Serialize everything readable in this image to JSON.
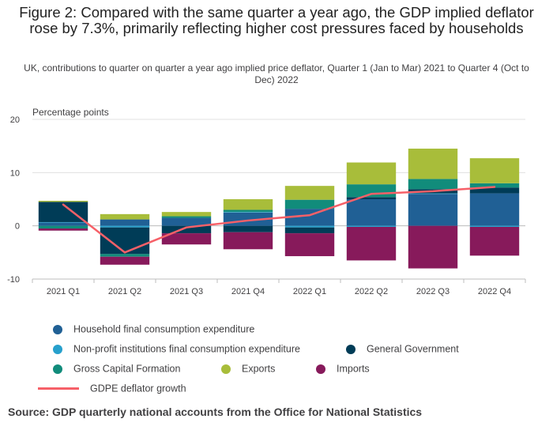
{
  "chart_data": {
    "type": "bar",
    "title": "Figure 2: Compared with the same quarter a year ago, the GDP implied deflator rose by 7.3%, primarily reflecting higher cost pressures faced by households",
    "subtitle": "UK, contributions to quarter on quarter a year ago implied price deflator, Quarter 1 (Jan to Mar) 2021 to Quarter 4 (Oct to Dec) 2022",
    "ylabel": "Percentage points",
    "xlabel": "",
    "ylim": [
      -10,
      20
    ],
    "yticks": [
      "20",
      "10",
      "0",
      "-10"
    ],
    "categories": [
      "2021 Q1",
      "2021 Q2",
      "2021 Q3",
      "2021 Q4",
      "2022 Q1",
      "2022 Q2",
      "2022 Q3",
      "2022 Q4"
    ],
    "stacked": true,
    "grid": true,
    "legend_position": "bottom",
    "series": [
      {
        "name": "Household final consumption expenditure",
        "color": "#206095",
        "values": [
          0.6,
          1.2,
          1.5,
          2.5,
          3.2,
          5.0,
          6.0,
          6.1
        ]
      },
      {
        "name": "Non-profit institutions final consumption expenditure",
        "color": "#27a0cc",
        "values": [
          0.1,
          -0.3,
          0.0,
          0.1,
          -0.3,
          -0.2,
          0.1,
          -0.2
        ]
      },
      {
        "name": "General Government",
        "color": "#003c57",
        "values": [
          3.8,
          -5.0,
          -1.4,
          -1.2,
          -1.1,
          0.4,
          0.8,
          1.1
        ]
      },
      {
        "name": "Gross Capital Formation",
        "color": "#118c7b",
        "values": [
          -0.5,
          -0.5,
          0.3,
          0.4,
          1.7,
          2.4,
          1.9,
          0.8
        ]
      },
      {
        "name": "Exports",
        "color": "#a8bd3a",
        "values": [
          0.2,
          1.0,
          0.8,
          2.0,
          2.6,
          4.1,
          5.7,
          4.7
        ]
      },
      {
        "name": "Imports",
        "color": "#871a5b",
        "values": [
          -0.4,
          -1.5,
          -2.1,
          -3.2,
          -4.3,
          -6.3,
          -8.0,
          -5.4
        ]
      }
    ],
    "line_series": {
      "name": "GDPE deflator growth",
      "color": "#f66068",
      "values": [
        4.0,
        -5.0,
        -0.3,
        1.0,
        2.0,
        6.0,
        6.5,
        7.3
      ]
    }
  },
  "source": "Source: GDP quarterly national accounts from the Office for National Statistics"
}
